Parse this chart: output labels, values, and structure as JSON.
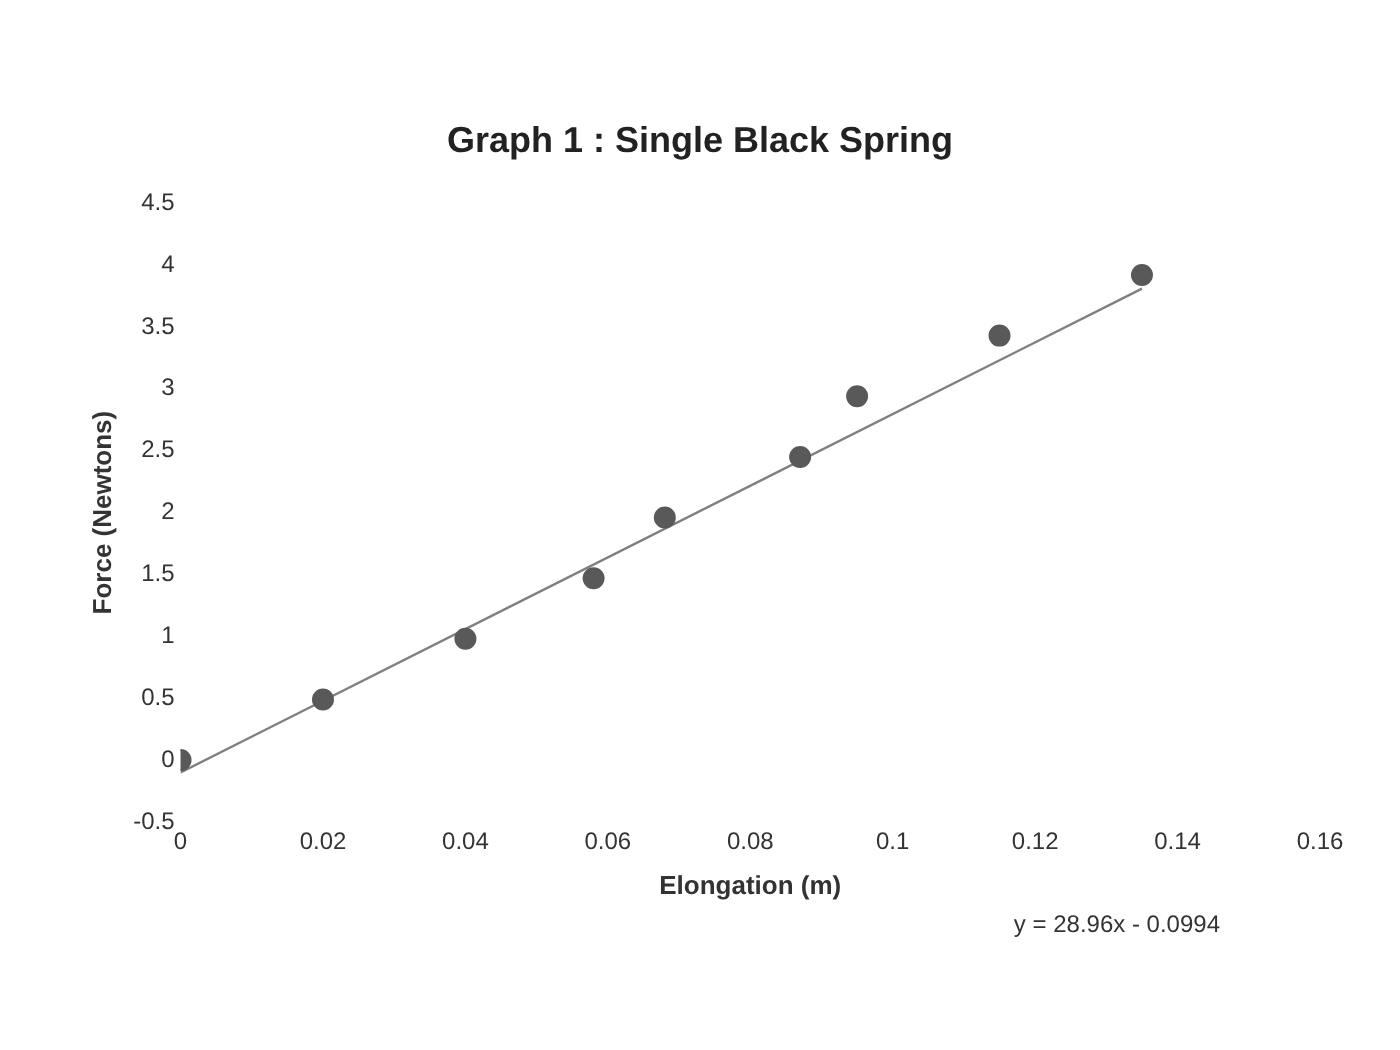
{
  "chart_data": {
    "type": "scatter",
    "title": "Graph 1 : Single Black Spring",
    "xlabel": "Elongation (m)",
    "ylabel": "Force (Newtons)",
    "xlim": [
      0,
      0.16
    ],
    "xticks": [
      0,
      0.02,
      0.04,
      0.06,
      0.08,
      0.1,
      0.12,
      0.14,
      0.16
    ],
    "ylim": [
      -0.5,
      4.5
    ],
    "yticks": [
      -0.5,
      0,
      0.5,
      1,
      1.5,
      2,
      2.5,
      3,
      3.5,
      4,
      4.5
    ],
    "grid": false,
    "marker": "circle",
    "annotations": [
      "y = 28.96x - 0.0994"
    ],
    "series": [
      {
        "color": "#595959",
        "x": [
          0,
          0.02,
          0.04,
          0.058,
          0.068,
          0.087,
          0.095,
          0.115,
          0.135
        ],
        "values": [
          0,
          0.49,
          0.98,
          1.47,
          1.96,
          2.45,
          2.94,
          3.43,
          3.92
        ]
      },
      {
        "type": "line",
        "color": "#7f7f7f",
        "marker": "none",
        "x": [
          0,
          0.135
        ],
        "values": [
          -0.1,
          3.81
        ]
      }
    ]
  }
}
